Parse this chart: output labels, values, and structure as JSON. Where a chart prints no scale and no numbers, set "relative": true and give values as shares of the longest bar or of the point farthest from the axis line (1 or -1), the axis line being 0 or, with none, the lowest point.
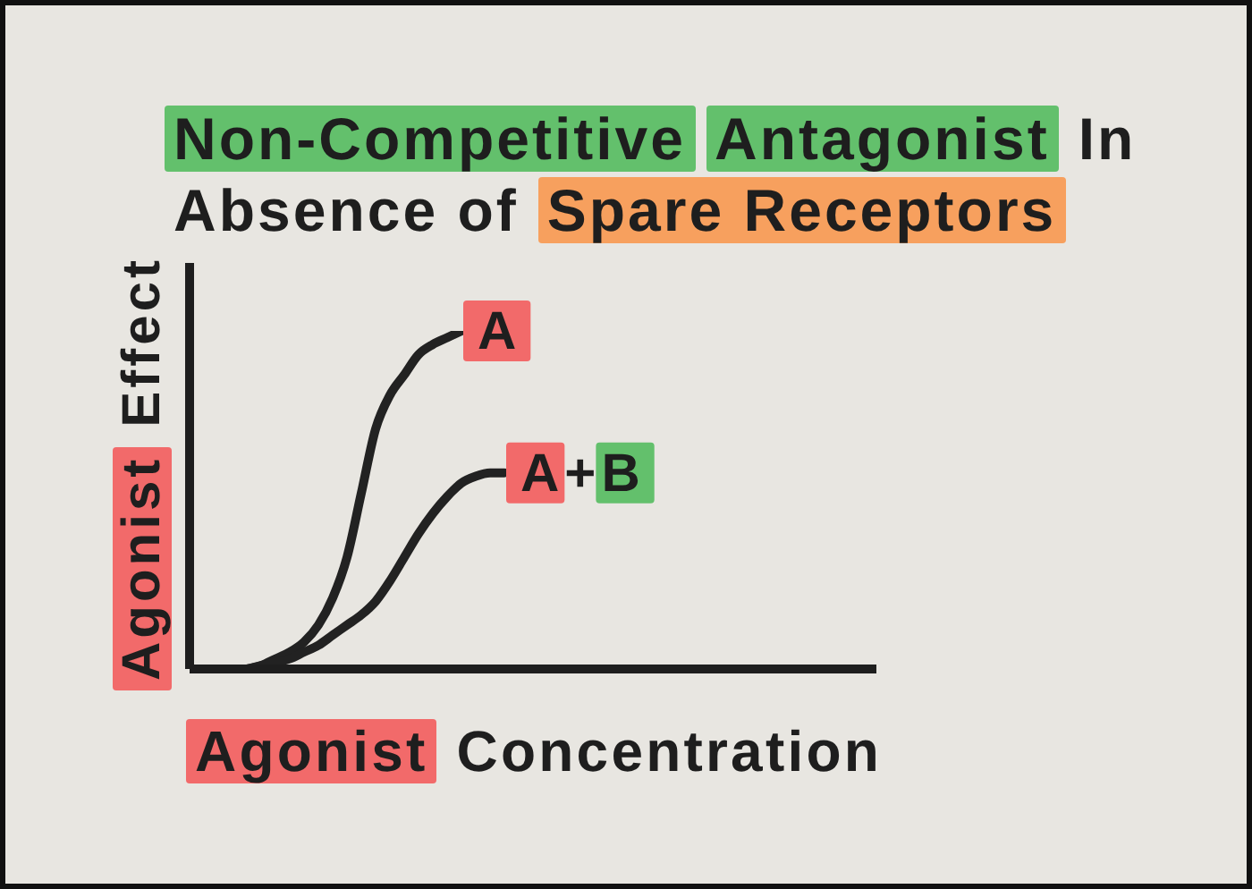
{
  "chart_data": {
    "type": "line",
    "title": "Non-Competitive Antagonist In Absence of Spare Receptors",
    "xlabel": "Agonist Concentration",
    "ylabel": "Agonist Effect",
    "relative": true,
    "marker": "none",
    "categories": [
      null,
      null,
      null,
      null,
      null,
      null,
      null,
      null,
      null,
      null,
      null,
      null,
      null,
      null,
      null,
      null,
      null,
      null,
      null,
      null,
      null,
      null,
      null,
      null,
      null,
      null,
      null,
      null,
      null,
      null,
      null,
      null,
      null,
      null,
      null,
      null,
      null,
      null,
      null,
      null,
      null,
      null,
      null,
      null,
      null,
      null,
      null,
      null,
      null
    ],
    "series": [
      {
        "name": "A",
        "color": "#222222",
        "values": [
          null,
          null,
          null,
          null,
          0,
          0.01,
          0.03,
          0.05,
          0.08,
          0.13,
          0.21,
          0.33,
          0.52,
          0.71,
          0.81,
          0.87,
          0.93,
          0.96,
          0.98,
          1,
          null,
          null,
          null,
          null,
          null,
          null,
          null,
          null,
          null,
          null,
          null,
          null,
          null,
          null,
          null,
          null,
          null,
          null,
          null,
          null,
          null,
          null,
          null,
          null,
          null,
          null,
          null,
          null,
          null
        ]
      },
      {
        "name": "A+B",
        "color": "#222222",
        "values": [
          null,
          null,
          null,
          null,
          0,
          0.01,
          0.02,
          0.03,
          0.05,
          0.07,
          0.1,
          0.13,
          0.16,
          0.2,
          0.26,
          0.33,
          0.4,
          0.46,
          0.51,
          0.55,
          0.57,
          0.58,
          0.58,
          null,
          null,
          null,
          null,
          null,
          null,
          null,
          null,
          null,
          null,
          null,
          null,
          null,
          null,
          null,
          null,
          null,
          null,
          null,
          null,
          null,
          null,
          null,
          null,
          null,
          null
        ]
      }
    ]
  }
}
